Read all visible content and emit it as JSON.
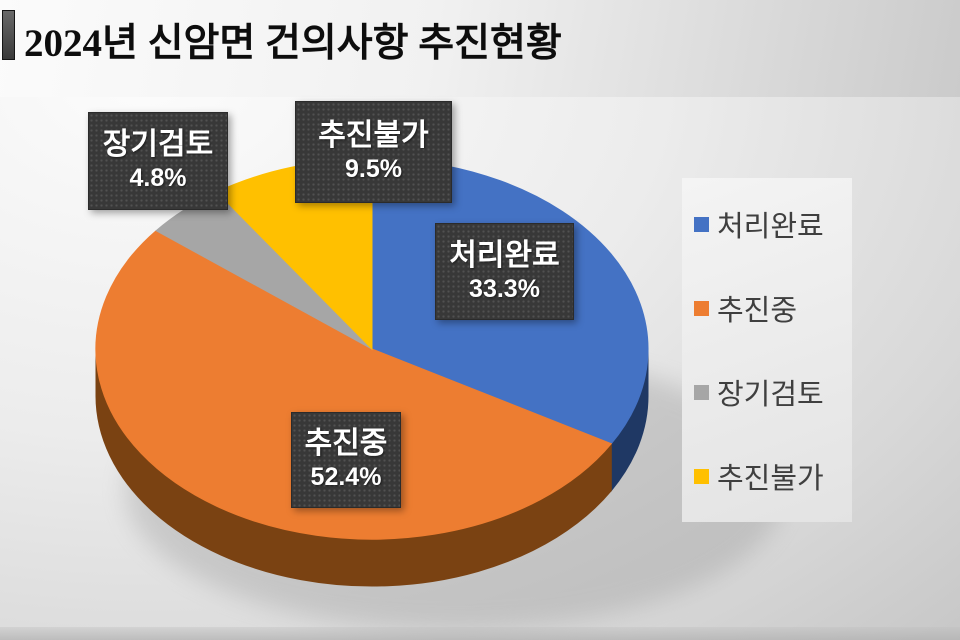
{
  "header": {
    "title": "2024년 신암면 건의사항 추진현황"
  },
  "chart_data": {
    "type": "pie",
    "title": "2024년 신암면 건의사항 추진현황",
    "effect": "3d",
    "start_angle_deg": 0,
    "direction": "clockwise",
    "legend_position": "right",
    "segments": [
      {
        "label": "처리완료",
        "value": 33.3,
        "pct_label": "33.3%",
        "color": "#4472C4",
        "side_color": "#1F3864"
      },
      {
        "label": "추진중",
        "value": 52.4,
        "pct_label": "52.4%",
        "color": "#ED7D31",
        "side_color": "#7A4212"
      },
      {
        "label": "장기검토",
        "value": 4.8,
        "pct_label": "4.8%",
        "color": "#A6A6A6",
        "side_color": "#6E6E6E"
      },
      {
        "label": "추진불가",
        "value": 9.5,
        "pct_label": "9.5%",
        "color": "#FFC000",
        "side_color": "#9C7500"
      }
    ],
    "shadow_color": "#8f8f8f"
  }
}
